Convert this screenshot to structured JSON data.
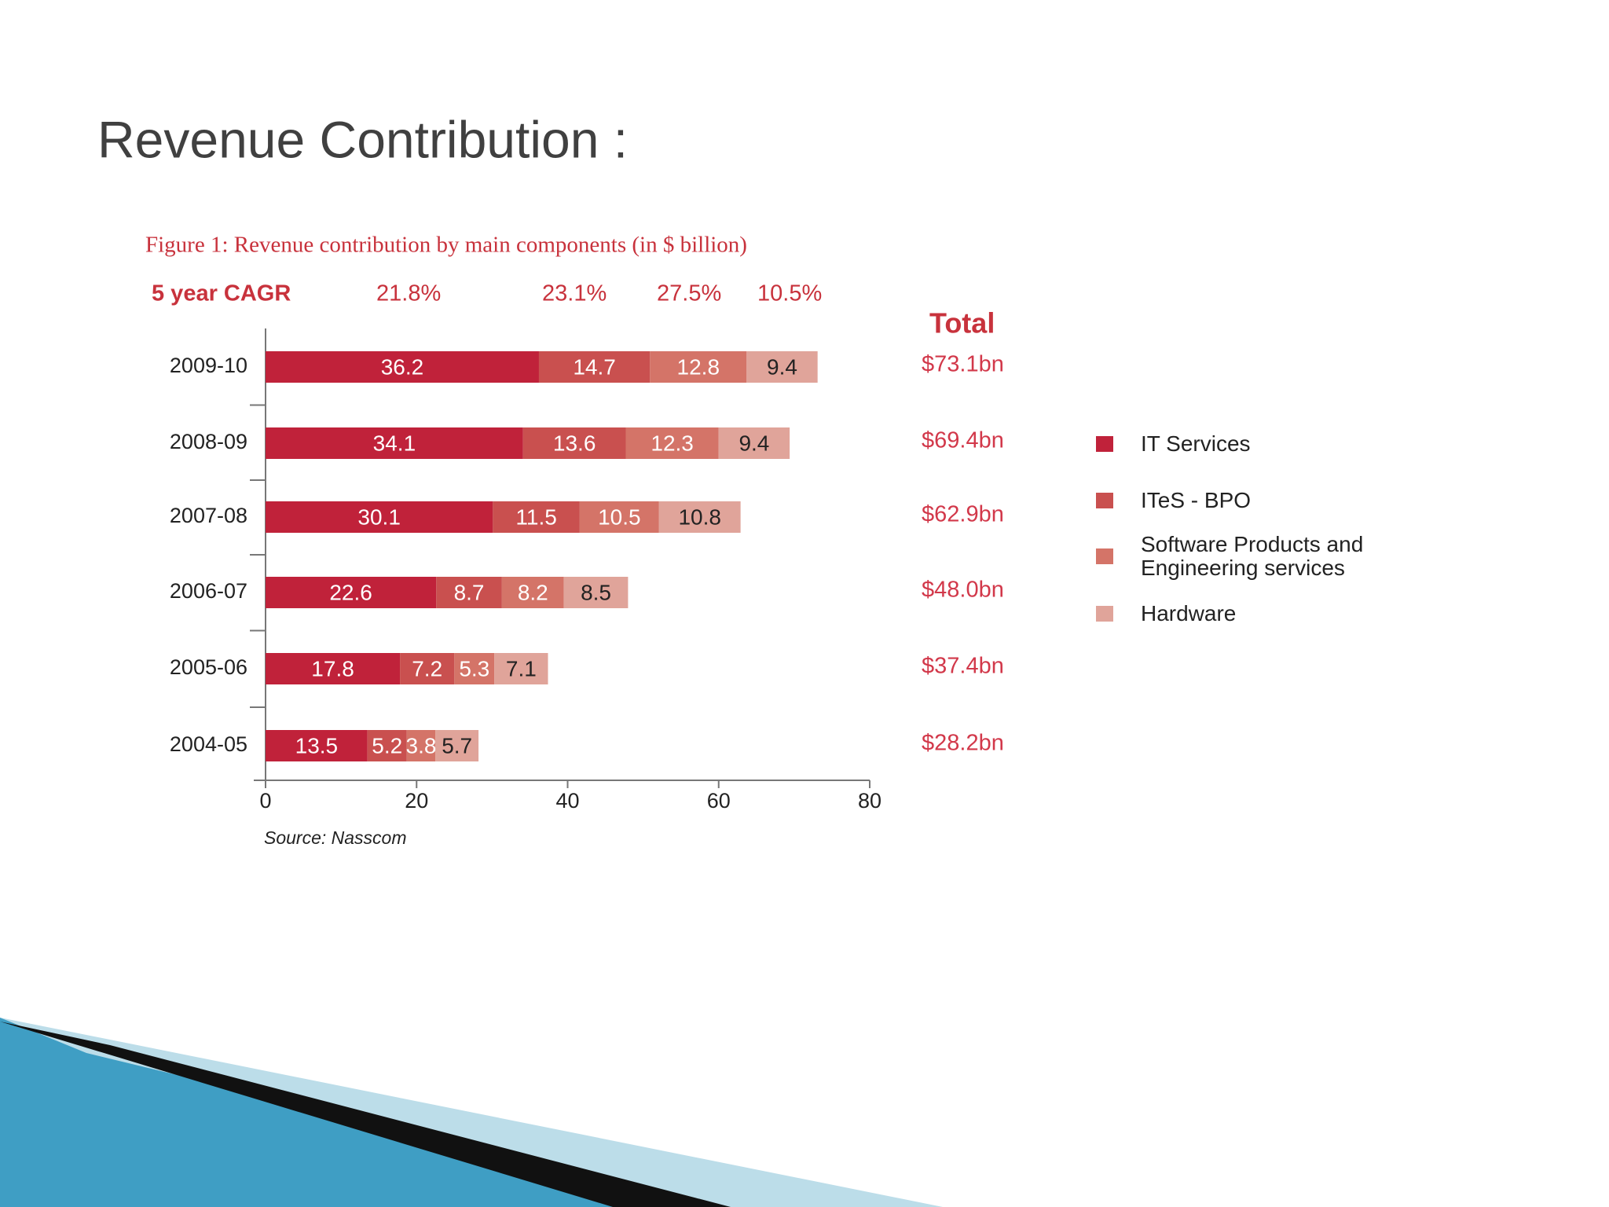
{
  "heading": "Revenue Contribution :",
  "chart_data": {
    "type": "bar",
    "orientation": "horizontal",
    "stacked": true,
    "title": "Figure 1: Revenue contribution by main components (in $ billion)",
    "categories": [
      "2009-10",
      "2008-09",
      "2007-08",
      "2006-07",
      "2005-06",
      "2004-05"
    ],
    "series": [
      {
        "name": "IT Services",
        "color": "#c0223a",
        "values": [
          36.2,
          34.1,
          30.1,
          22.6,
          17.8,
          13.5
        ]
      },
      {
        "name": "ITeS - BPO",
        "color": "#c9504f",
        "values": [
          14.7,
          13.6,
          11.5,
          8.7,
          7.2,
          5.2
        ]
      },
      {
        "name": "Software Products and Engineering services",
        "color": "#d47468",
        "values": [
          12.8,
          12.3,
          10.5,
          8.2,
          5.3,
          3.8
        ]
      },
      {
        "name": "Hardware",
        "color": "#e0a49a",
        "values": [
          9.4,
          9.4,
          10.8,
          8.5,
          7.1,
          5.7
        ]
      }
    ],
    "cagr": {
      "label": "5 year CAGR",
      "values": [
        21.8,
        23.1,
        27.5,
        10.5
      ],
      "value_labels": [
        "21.8%",
        "23.1%",
        "27.5%",
        "10.5%"
      ]
    },
    "totals": {
      "label": "Total",
      "values": [
        73.1,
        69.4,
        62.9,
        48.0,
        37.4,
        28.2
      ],
      "value_labels": [
        "$73.1bn",
        "$69.4bn",
        "$62.9bn",
        "$48.0bn",
        "$37.4bn",
        "$28.2bn"
      ]
    },
    "xlim": [
      0,
      80
    ],
    "xticks": [
      0,
      20,
      40,
      60,
      80
    ],
    "legend": "right",
    "source": "Source: Nasscom"
  }
}
